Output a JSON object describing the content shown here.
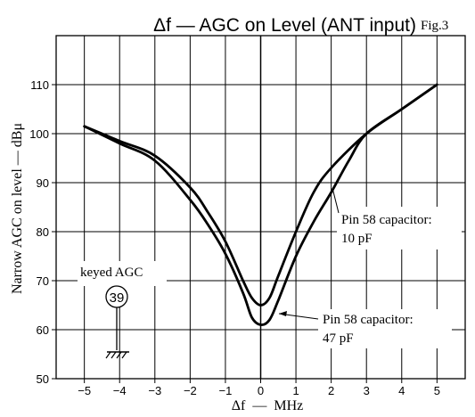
{
  "chart_data": {
    "type": "line",
    "title": "Δf — AGC on Level (ANT input)",
    "figure_label": "Fig.3",
    "xlabel": "Δf  —  MHz",
    "ylabel": "Narrow AGC on level — dBμ",
    "xlim": [
      -5.8,
      5.8
    ],
    "ylim": [
      50,
      120
    ],
    "grid": true,
    "x_ticks": [
      "-5",
      "-4",
      "-3",
      "-2",
      "-1",
      "0",
      "1",
      "2",
      "3",
      "4",
      "5"
    ],
    "y_ticks": [
      "50",
      "60",
      "70",
      "80",
      "90",
      "100",
      "110"
    ],
    "series": [
      {
        "name": "Pin 58 capacitor: 10 pF",
        "x": [
          -5,
          -4,
          -3,
          -2,
          -1.5,
          -1,
          -0.5,
          -0.25,
          0,
          0.25,
          0.5,
          1,
          1.5,
          2,
          3,
          4,
          5
        ],
        "y": [
          101.5,
          98.5,
          95.5,
          89,
          84,
          78,
          70,
          66.5,
          65,
          66.5,
          71,
          80,
          88,
          93,
          100,
          105,
          110
        ]
      },
      {
        "name": "Pin 58 capacitor: 47 pF",
        "x": [
          -5,
          -4,
          -3,
          -2,
          -1.5,
          -1,
          -0.5,
          -0.25,
          0,
          0.25,
          0.5,
          1,
          1.5,
          2,
          2.5,
          3,
          4,
          5
        ],
        "y": [
          101.5,
          98,
          94.5,
          86.5,
          81.5,
          75.5,
          67.5,
          62.5,
          61,
          62,
          66,
          75,
          82,
          88,
          94.5,
          100,
          105,
          110
        ]
      }
    ],
    "annotations": [
      {
        "lines": [
          "Pin 58 capacitor:",
          "10 pF"
        ],
        "series_index": 0
      },
      {
        "lines": [
          "Pin 58 capacitor:",
          "47 pF"
        ],
        "series_index": 1
      },
      {
        "text": "keyed AGC"
      },
      {
        "pin": "39"
      }
    ]
  }
}
